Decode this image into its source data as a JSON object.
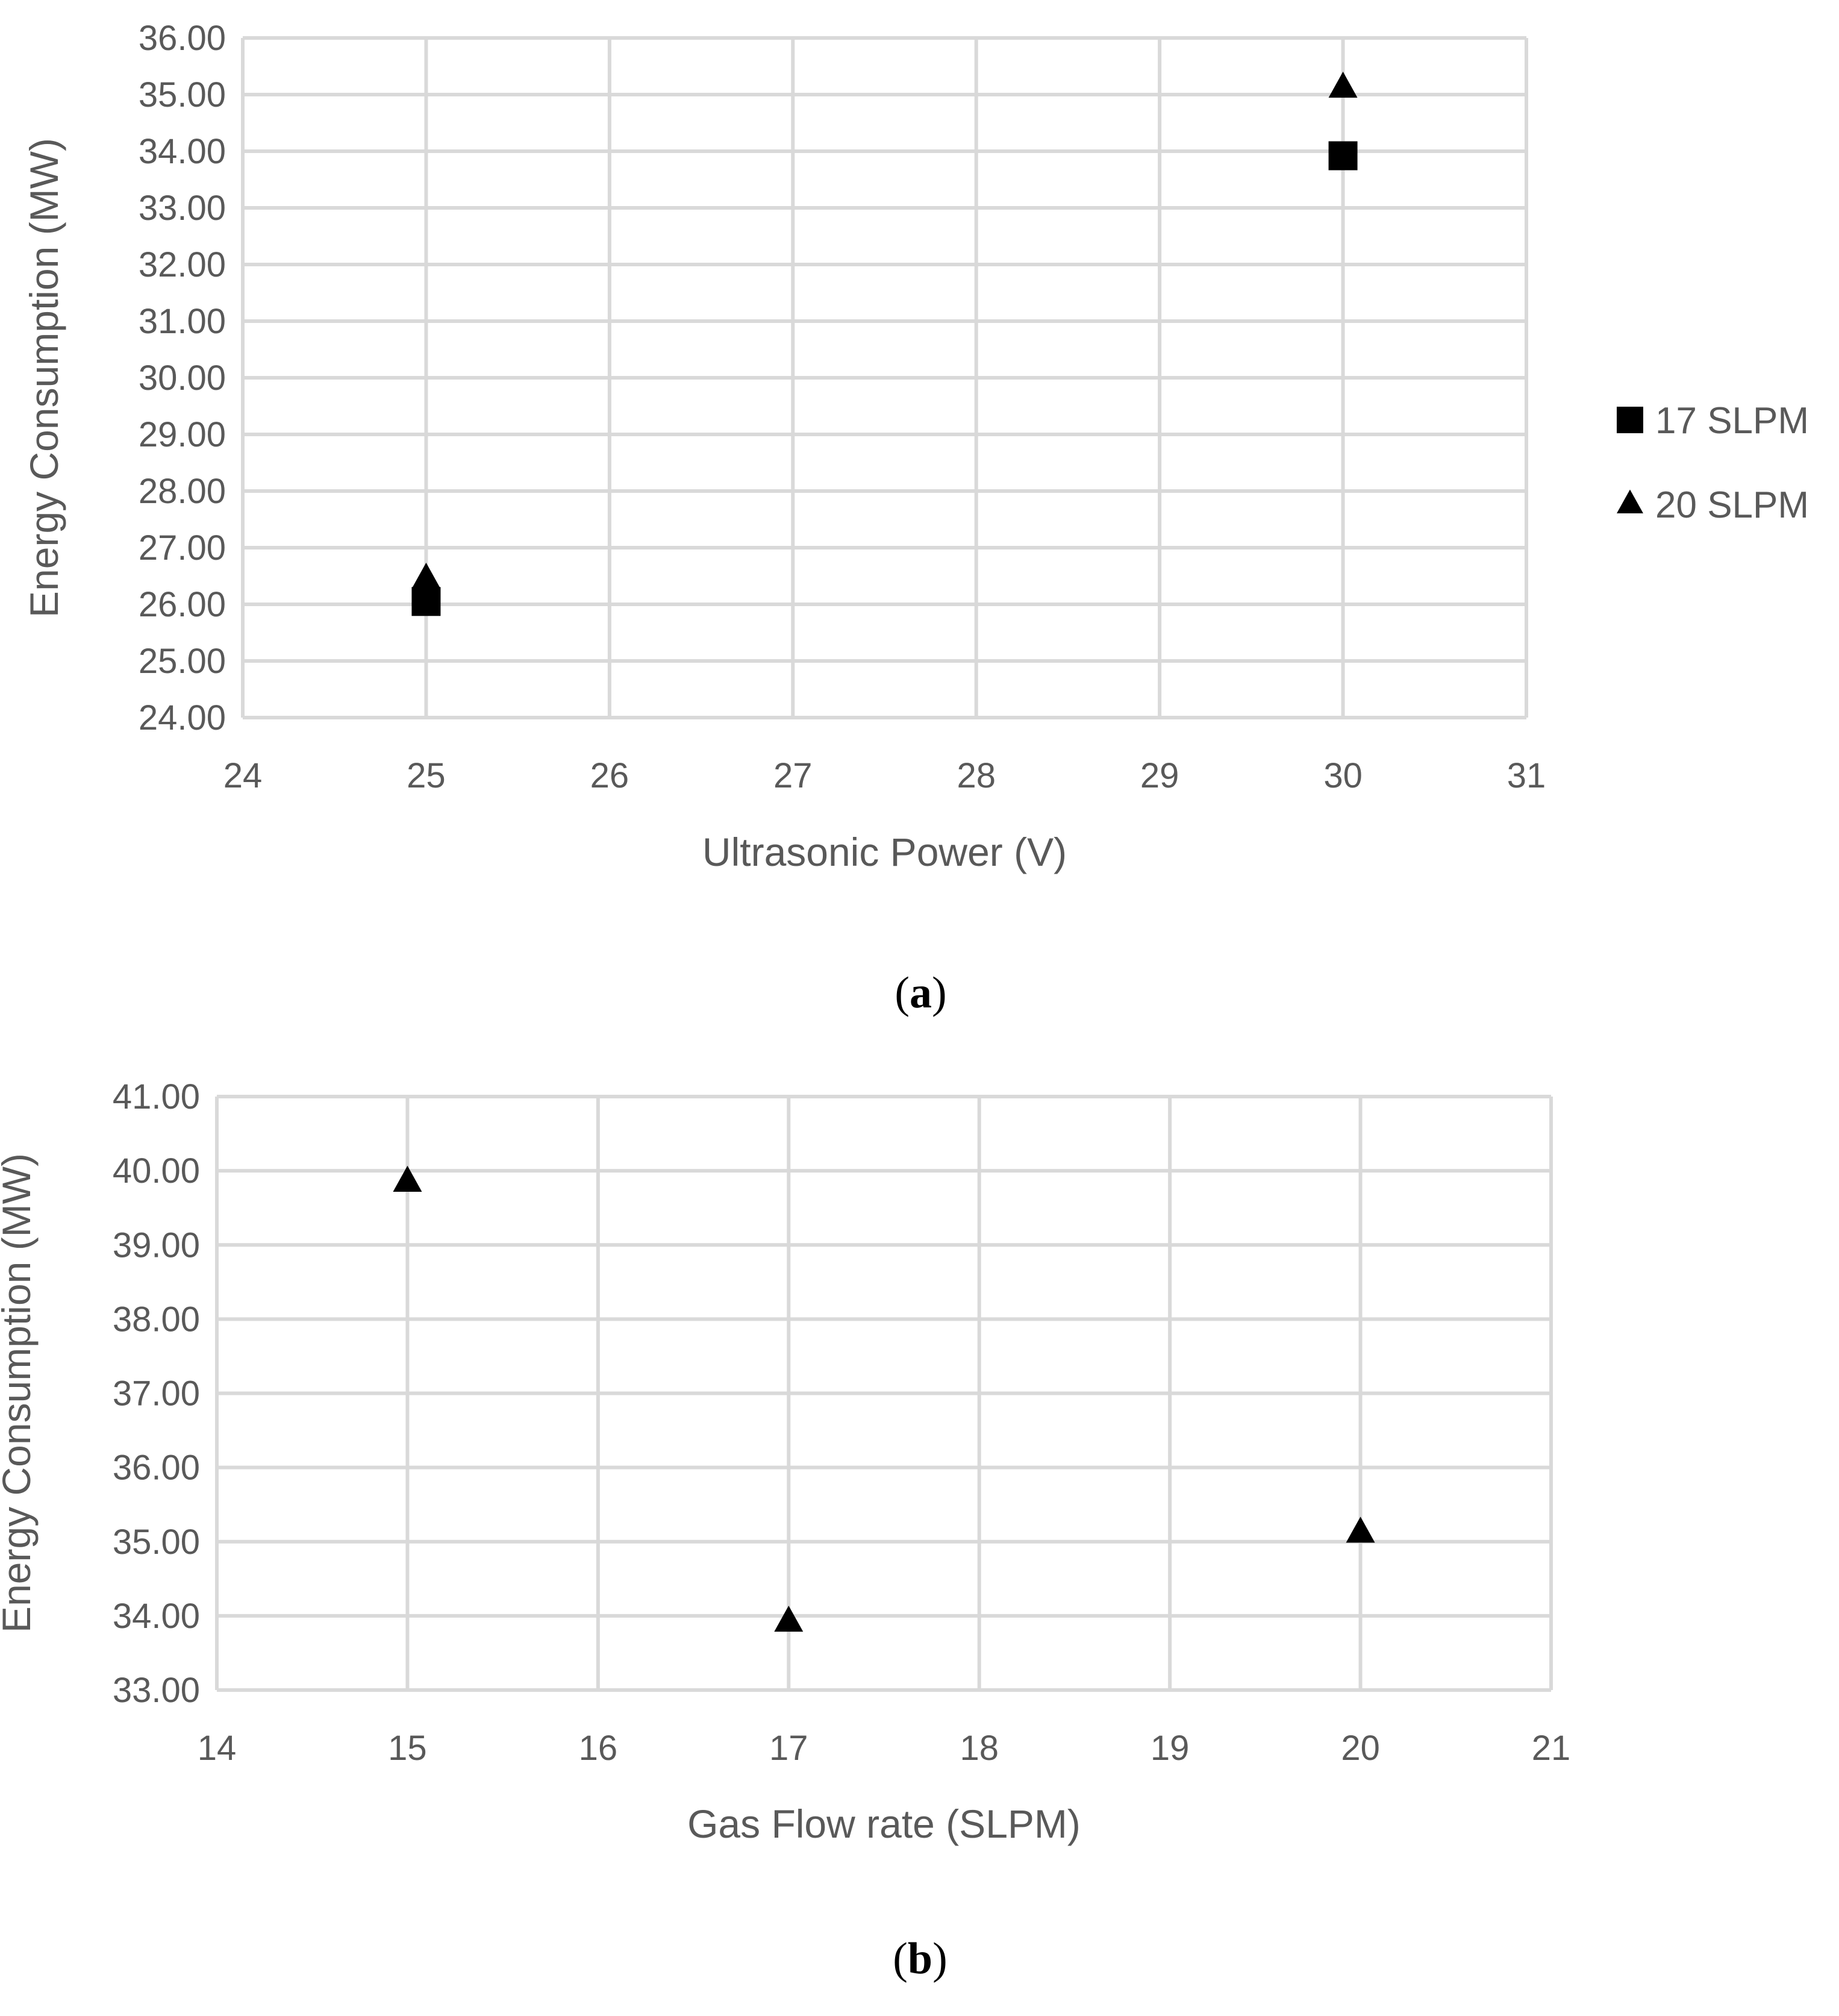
{
  "chart_data": [
    {
      "type": "scatter",
      "title": "",
      "xlabel": "Ultrasonic Power (V)",
      "ylabel": "Energy Consumption (MW)",
      "xlim": [
        24,
        31
      ],
      "ylim": [
        24,
        36
      ],
      "x_ticks": [
        "24",
        "25",
        "26",
        "27",
        "28",
        "29",
        "30",
        "31"
      ],
      "y_ticks": [
        "24.00",
        "25.00",
        "26.00",
        "27.00",
        "28.00",
        "29.00",
        "30.00",
        "31.00",
        "32.00",
        "33.00",
        "34.00",
        "35.00",
        "36.00"
      ],
      "grid": true,
      "legend_position": "right",
      "series": [
        {
          "name": "17 SLPM",
          "marker": "square",
          "color": "#000000",
          "points": [
            {
              "x": 25,
              "y": 26.05
            },
            {
              "x": 30,
              "y": 33.92
            }
          ]
        },
        {
          "name": "20 SLPM",
          "marker": "triangle",
          "color": "#000000",
          "points": [
            {
              "x": 25,
              "y": 26.45
            },
            {
              "x": 30,
              "y": 35.12
            }
          ]
        }
      ],
      "caption_letter": "a"
    },
    {
      "type": "scatter",
      "title": "",
      "xlabel": "Gas Flow rate (SLPM)",
      "ylabel": "Energy Consumption (MW)",
      "xlim": [
        14,
        21
      ],
      "ylim": [
        33,
        41
      ],
      "x_ticks": [
        "14",
        "15",
        "16",
        "17",
        "18",
        "19",
        "20",
        "21"
      ],
      "y_ticks": [
        "33.00",
        "34.00",
        "35.00",
        "36.00",
        "37.00",
        "38.00",
        "39.00",
        "40.00",
        "41.00"
      ],
      "grid": true,
      "legend_position": "none",
      "series": [
        {
          "marker": "triangle",
          "color": "#000000",
          "points": [
            {
              "x": 15,
              "y": 39.85
            },
            {
              "x": 17,
              "y": 33.92
            },
            {
              "x": 20,
              "y": 35.12
            }
          ]
        }
      ],
      "caption_letter": "b"
    }
  ]
}
